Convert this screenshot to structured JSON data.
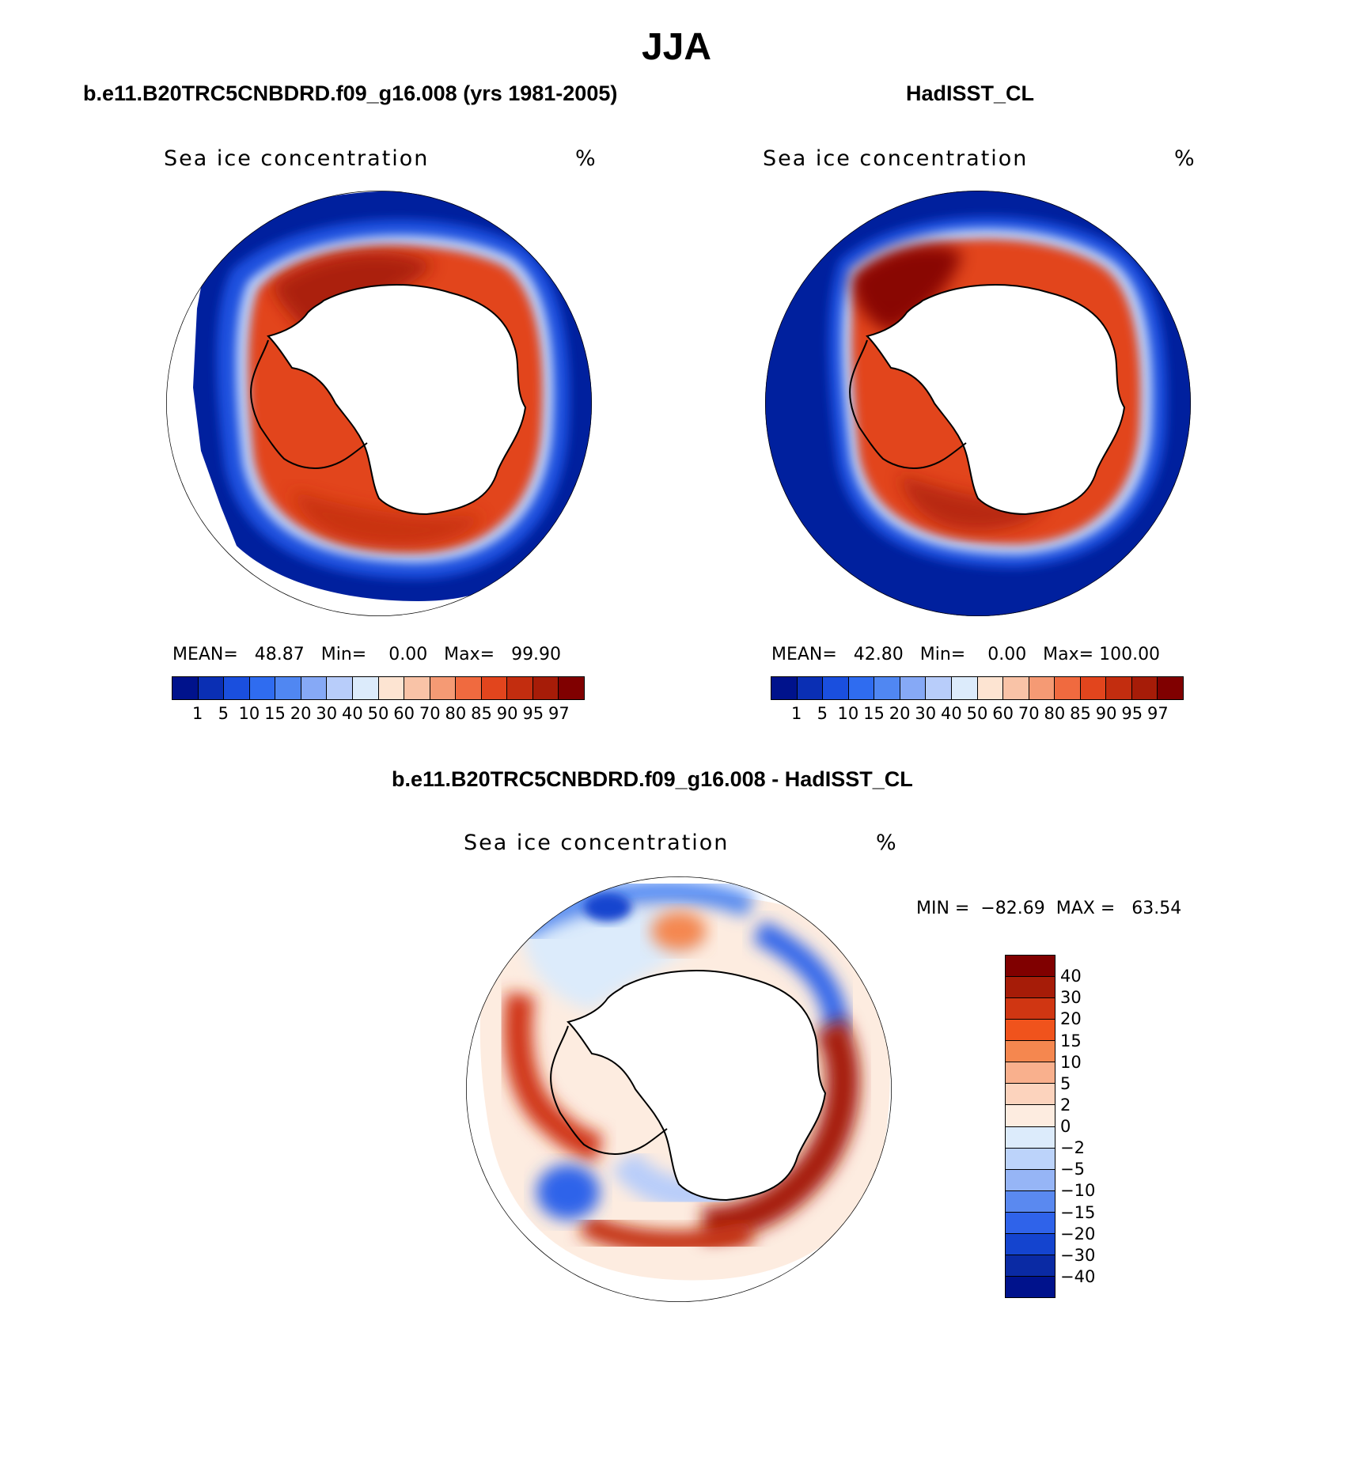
{
  "figure_title": "JJA",
  "panels": [
    {
      "title": "b.e11.B20TRC5CNBDRD.f09_g16.008 (yrs 1981-2005)",
      "variable": "Sea ice concentration",
      "units": "%",
      "stats": "MEAN=   48.87   Min=    0.00   Max=   99.90"
    },
    {
      "title": "HadISST_CL",
      "variable": "Sea ice concentration",
      "units": "%",
      "stats": "MEAN=   42.80   Min=    0.00   Max= 100.00"
    },
    {
      "title": "b.e11.B20TRC5CNBDRD.f09_g16.008 - HadISST_CL",
      "variable": "Sea ice concentration",
      "units": "%",
      "stats": "MIN =  −82.69  MAX =   63.54"
    }
  ],
  "abs_colorbar": {
    "levels": [
      "1",
      "5",
      "10",
      "15",
      "20",
      "30",
      "40",
      "50",
      "60",
      "70",
      "80",
      "85",
      "90",
      "95",
      "97"
    ],
    "colors": [
      "#00128c",
      "#0a2fb4",
      "#1a4fde",
      "#2f6cf0",
      "#5087f2",
      "#86a9f6",
      "#b8cdfa",
      "#dcebfb",
      "#fde4d2",
      "#f9c3a7",
      "#f59a74",
      "#f06a3f",
      "#e2451d",
      "#c32d0f",
      "#a61c08",
      "#800000"
    ]
  },
  "diff_colorbar": {
    "levels": [
      "40",
      "30",
      "20",
      "15",
      "10",
      "5",
      "2",
      "0",
      "−2",
      "−5",
      "−10",
      "−15",
      "−20",
      "−30",
      "−40"
    ],
    "colors": [
      "#800000",
      "#a61c08",
      "#d03612",
      "#f0531c",
      "#f5874f",
      "#f9b08d",
      "#fcd3bd",
      "#fdece0",
      "#dcebfb",
      "#bcd3fa",
      "#96b5f6",
      "#5a89f0",
      "#2f63ea",
      "#1444cf",
      "#0a2aa4",
      "#00128c"
    ]
  },
  "chart_data": [
    {
      "type": "heatmap",
      "title": "b.e11.B20TRC5CNBDRD.f09_g16.008 (yrs 1981-2005)",
      "variable": "Sea ice concentration",
      "units": "%",
      "projection": "south polar stereographic",
      "stats": {
        "mean": 48.87,
        "min": 0.0,
        "max": 99.9
      },
      "levels": [
        1,
        5,
        10,
        15,
        20,
        30,
        40,
        50,
        60,
        70,
        80,
        85,
        90,
        95,
        97
      ]
    },
    {
      "type": "heatmap",
      "title": "HadISST_CL",
      "variable": "Sea ice concentration",
      "units": "%",
      "projection": "south polar stereographic",
      "stats": {
        "mean": 42.8,
        "min": 0.0,
        "max": 100.0
      },
      "levels": [
        1,
        5,
        10,
        15,
        20,
        30,
        40,
        50,
        60,
        70,
        80,
        85,
        90,
        95,
        97
      ]
    },
    {
      "type": "heatmap",
      "title": "b.e11.B20TRC5CNBDRD.f09_g16.008 - HadISST_CL",
      "variable": "Sea ice concentration",
      "units": "%",
      "projection": "south polar stereographic",
      "stats": {
        "min": -82.69,
        "max": 63.54
      },
      "levels": [
        -40,
        -30,
        -20,
        -15,
        -10,
        -5,
        -2,
        0,
        2,
        5,
        10,
        15,
        20,
        30,
        40
      ]
    }
  ]
}
